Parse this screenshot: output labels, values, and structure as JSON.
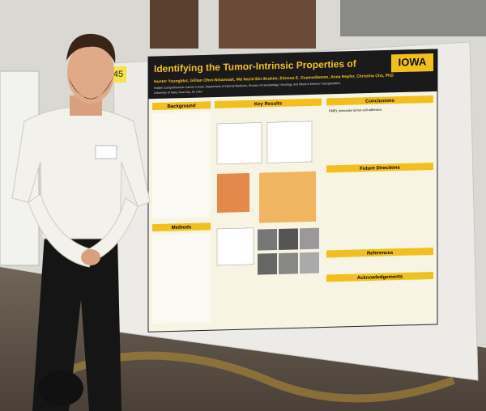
{
  "board_number": "45",
  "poster": {
    "title": "Identifying the Tumor-Intrinsic Properties of",
    "authors": "Hunter Youngblut, Gillian Ofori-Nitiamoah, Md Nazid Bin Ibrahim, Etinosa E. Osamudiamen, Anna Hepfer, Christina Cho, PhD",
    "affiliation": "Holden Comprehensive Cancer Center, Department of Internal Medicine, Division of Hematology, Oncology, and Blood & Marrow Transplantation",
    "location": "University of Iowa, Iowa City, IA, USA",
    "logo": "IOWA",
    "sections": {
      "background": "Background",
      "methods": "Methods",
      "key_results": "Key Results",
      "conclusions": "Conclusions",
      "future_directions": "Future Directions",
      "references": "References",
      "acknowledgements": "Acknowledgements"
    },
    "conclusion_first_line": "PMEL increases tumor-cell adhesion."
  }
}
